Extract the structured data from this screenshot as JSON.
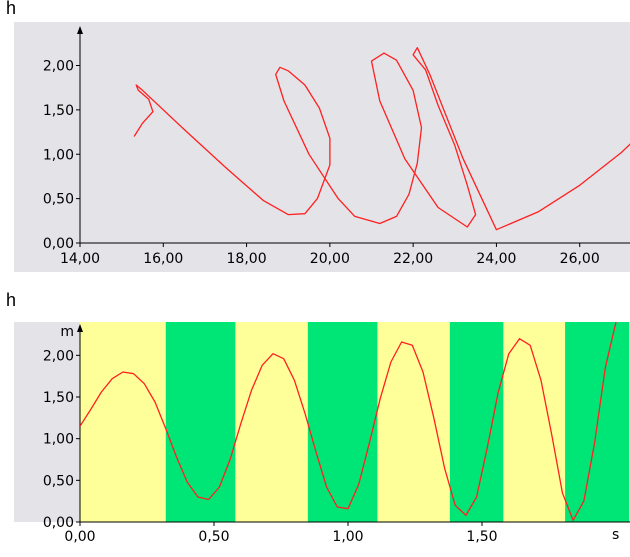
{
  "chart_data": [
    {
      "type": "line",
      "title": "h",
      "xlim": [
        14,
        28
      ],
      "ylim": [
        0,
        2.4
      ],
      "x_ticks": [
        {
          "value": 14,
          "label": "14,00"
        },
        {
          "value": 16,
          "label": "16,00"
        },
        {
          "value": 18,
          "label": "18,00"
        },
        {
          "value": 20,
          "label": "20,00"
        },
        {
          "value": 22,
          "label": "22,00"
        },
        {
          "value": 24,
          "label": "24,00"
        },
        {
          "value": 26,
          "label": "26,00"
        }
      ],
      "y_ticks": [
        {
          "value": 0,
          "label": "0,00"
        },
        {
          "value": 0.5,
          "label": "0,50"
        },
        {
          "value": 1,
          "label": "1,00"
        },
        {
          "value": 1.5,
          "label": "1,50"
        },
        {
          "value": 2,
          "label": "2,00"
        }
      ],
      "colors": {
        "background": "#e3e3e8",
        "line": "#ff2020"
      },
      "series": [
        {
          "x": [
            15.3,
            15.5,
            15.75,
            15.65,
            15.4,
            15.35,
            15.5,
            16.5,
            17.5,
            18.4,
            19.0,
            19.4,
            19.7,
            20.0,
            20.0,
            19.75,
            19.4,
            19.0,
            18.8,
            18.7,
            18.9,
            19.5,
            20.2,
            20.6,
            21.2,
            21.6,
            21.9,
            22.1,
            22.2,
            22.0,
            21.6,
            21.3,
            21.0,
            21.2,
            21.8,
            22.6,
            23.3,
            23.5,
            23.3,
            23.0,
            22.6,
            22.3,
            22.0,
            22.1,
            22.4,
            23.2,
            24.0,
            25.0,
            26.0,
            27.0,
            27.8
          ],
          "y": [
            1.2,
            1.35,
            1.48,
            1.62,
            1.72,
            1.78,
            1.72,
            1.28,
            0.85,
            0.48,
            0.32,
            0.33,
            0.5,
            0.88,
            1.18,
            1.52,
            1.78,
            1.94,
            1.98,
            1.9,
            1.6,
            1.0,
            0.5,
            0.3,
            0.22,
            0.3,
            0.55,
            0.9,
            1.3,
            1.72,
            2.06,
            2.14,
            2.05,
            1.6,
            0.95,
            0.4,
            0.18,
            0.32,
            0.65,
            1.1,
            1.55,
            1.95,
            2.12,
            2.2,
            1.9,
            0.95,
            0.15,
            0.35,
            0.65,
            1.02,
            1.38
          ]
        }
      ]
    },
    {
      "type": "line",
      "title": "h",
      "ylabel": "m",
      "xlabel": "s",
      "xlim": [
        0,
        2.0
      ],
      "ylim": [
        0,
        2.4
      ],
      "x_ticks": [
        {
          "value": 0,
          "label": "0,00"
        },
        {
          "value": 0.5,
          "label": "0,50"
        },
        {
          "value": 1.0,
          "label": "1,00"
        },
        {
          "value": 1.5,
          "label": "1,50"
        }
      ],
      "y_ticks": [
        {
          "value": 0,
          "label": "0,00"
        },
        {
          "value": 0.5,
          "label": "0,50"
        },
        {
          "value": 1,
          "label": "1,00"
        },
        {
          "value": 1.5,
          "label": "1,50"
        },
        {
          "value": 2,
          "label": "2,00"
        }
      ],
      "bands": [
        {
          "start": 0.0,
          "end": 0.32,
          "color": "#ffff99"
        },
        {
          "start": 0.32,
          "end": 0.58,
          "color": "#00e676"
        },
        {
          "start": 0.58,
          "end": 0.85,
          "color": "#ffff99"
        },
        {
          "start": 0.85,
          "end": 1.11,
          "color": "#00e676"
        },
        {
          "start": 1.11,
          "end": 1.38,
          "color": "#ffff99"
        },
        {
          "start": 1.38,
          "end": 1.58,
          "color": "#00e676"
        },
        {
          "start": 1.58,
          "end": 1.81,
          "color": "#ffff99"
        },
        {
          "start": 1.81,
          "end": 2.05,
          "color": "#00e676"
        }
      ],
      "colors": {
        "line": "#ff2020"
      },
      "series": [
        {
          "x": [
            0.0,
            0.04,
            0.08,
            0.12,
            0.16,
            0.2,
            0.24,
            0.28,
            0.32,
            0.36,
            0.4,
            0.44,
            0.48,
            0.52,
            0.56,
            0.6,
            0.64,
            0.68,
            0.72,
            0.76,
            0.8,
            0.84,
            0.88,
            0.92,
            0.96,
            1.0,
            1.04,
            1.08,
            1.12,
            1.16,
            1.2,
            1.24,
            1.28,
            1.32,
            1.36,
            1.4,
            1.44,
            1.48,
            1.52,
            1.56,
            1.6,
            1.64,
            1.68,
            1.72,
            1.76,
            1.8,
            1.84,
            1.88,
            1.92,
            1.96,
            2.0,
            2.04
          ],
          "y": [
            1.15,
            1.35,
            1.56,
            1.72,
            1.8,
            1.78,
            1.66,
            1.44,
            1.12,
            0.78,
            0.48,
            0.3,
            0.27,
            0.42,
            0.75,
            1.18,
            1.58,
            1.88,
            2.02,
            1.96,
            1.7,
            1.3,
            0.85,
            0.42,
            0.18,
            0.16,
            0.45,
            0.95,
            1.48,
            1.92,
            2.16,
            2.12,
            1.8,
            1.25,
            0.65,
            0.2,
            0.08,
            0.3,
            0.9,
            1.55,
            2.02,
            2.2,
            2.12,
            1.7,
            1.05,
            0.35,
            0.02,
            0.25,
            0.95,
            1.85,
            2.4,
            2.55
          ]
        }
      ]
    }
  ]
}
